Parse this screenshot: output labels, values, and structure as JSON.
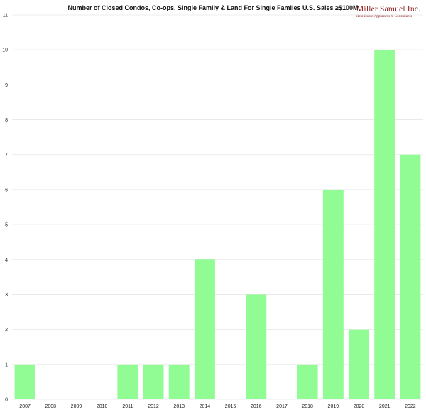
{
  "chart_data": {
    "type": "bar",
    "title": "Number of Closed Condos, Co-ops, Single Family & Land For Single Familes U.S. Sales ≥$100M",
    "xlabel": "",
    "ylabel": "",
    "categories": [
      "2007",
      "2008",
      "2009",
      "2010",
      "2011",
      "2012",
      "2013",
      "2014",
      "2015",
      "2016",
      "2017",
      "2018",
      "2019",
      "2020",
      "2021",
      "2022"
    ],
    "values": [
      1,
      0,
      0,
      0,
      1,
      1,
      1,
      4,
      0,
      3,
      0,
      1,
      6,
      2,
      10,
      7
    ],
    "ylim": [
      0,
      11
    ],
    "yticks": [
      0,
      1,
      2,
      3,
      4,
      5,
      6,
      7,
      8,
      9,
      10,
      11
    ],
    "grid": true,
    "bar_color": "#92fc94",
    "grid_color": "#e6e6e6"
  },
  "logo": {
    "name": "Miller Samuel Inc.",
    "tagline": "Real Estate Appraisers & Consultants",
    "color": "#8a1a1a"
  }
}
